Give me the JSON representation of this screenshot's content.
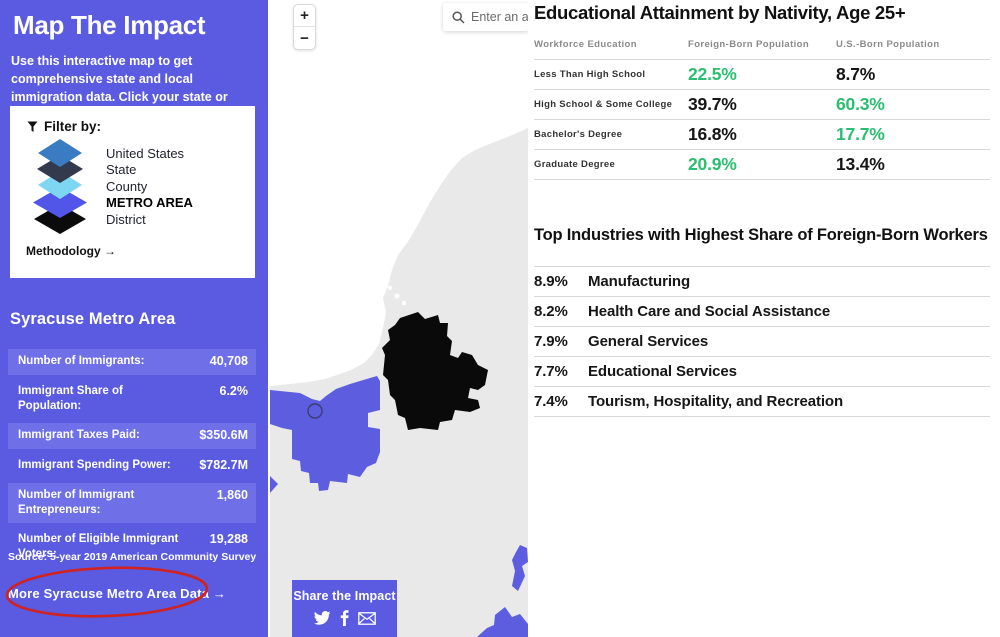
{
  "sidebar": {
    "title": "Map The Impact",
    "description": "Use this interactive map to get comprehensive state and local immigration data. Click your state or county to get started.",
    "filter": {
      "label": "Filter by:",
      "layers": [
        {
          "name": "United States",
          "color": "#3a7cc2",
          "active": false
        },
        {
          "name": "State",
          "color": "#343a4e",
          "active": false
        },
        {
          "name": "County",
          "color": "#7dd7f2",
          "active": false
        },
        {
          "name": "METRO AREA",
          "color": "#5156e8",
          "active": true
        },
        {
          "name": "District",
          "color": "#0b0b0b",
          "active": false
        }
      ],
      "methodology_label": "Methodology →"
    },
    "region": {
      "heading": "Syracuse Metro Area",
      "stats": [
        {
          "label": "Number of Immigrants:",
          "value": "40,708",
          "highlighted": true
        },
        {
          "label": "Immigrant Share of Population:",
          "value": "6.2%",
          "highlighted": false
        },
        {
          "label": "Immigrant Taxes Paid:",
          "value": "$350.6M",
          "highlighted": true
        },
        {
          "label": "Immigrant Spending Power:",
          "value": "$782.7M",
          "highlighted": false
        },
        {
          "label": "Number of Immigrant Entrepreneurs:",
          "value": "1,860",
          "highlighted": true
        },
        {
          "label": "Number of Eligible Immigrant Voters:",
          "value": "19,288",
          "highlighted": false
        }
      ],
      "source": "Source: 5-year 2019 American Community Survey",
      "more_link": "More Syracuse Metro Area Data →"
    }
  },
  "map": {
    "zoom_in": "+",
    "zoom_out": "−",
    "search_placeholder": "Enter an add",
    "share": {
      "label": "Share the Impact",
      "icons": [
        "twitter-icon",
        "facebook-icon",
        "email-icon"
      ]
    }
  },
  "panel": {
    "education": {
      "title": "Educational Attainment by Nativity, Age 25+",
      "columns": [
        "Workforce Education",
        "Foreign-Born Population",
        "U.S.-Born Population"
      ],
      "rows": [
        {
          "label": "Less Than High School",
          "foreign_born": "22.5%",
          "foreign_color": "green",
          "us_born": "8.7%",
          "us_color": "dark"
        },
        {
          "label": "High School & Some College",
          "foreign_born": "39.7%",
          "foreign_color": "dark",
          "us_born": "60.3%",
          "us_color": "green"
        },
        {
          "label": "Bachelor's Degree",
          "foreign_born": "16.8%",
          "foreign_color": "dark",
          "us_born": "17.7%",
          "us_color": "green"
        },
        {
          "label": "Graduate Degree",
          "foreign_born": "20.9%",
          "foreign_color": "green",
          "us_born": "13.4%",
          "us_color": "dark"
        }
      ]
    },
    "industries": {
      "title": "Top Industries with Highest Share of Foreign-Born Workers",
      "rows": [
        {
          "pct": "8.9%",
          "name": "Manufacturing"
        },
        {
          "pct": "8.2%",
          "name": "Health Care and Social Assistance"
        },
        {
          "pct": "7.9%",
          "name": "General Services"
        },
        {
          "pct": "7.7%",
          "name": "Educational Services"
        },
        {
          "pct": "7.4%",
          "name": "Tourism, Hospitality, and Recreation"
        }
      ]
    }
  },
  "colors": {
    "sidebar_bg": "#5b5be1",
    "stat_row_highlight": "#6f6fe8",
    "green": "#2abf70",
    "dark": "#161616",
    "map_land": "#e9e9e9",
    "map_water": "#ffffff",
    "metro_fill": "#5d5de0",
    "district_fill": "#0a0a0a",
    "annotation_red": "#cf2222"
  }
}
